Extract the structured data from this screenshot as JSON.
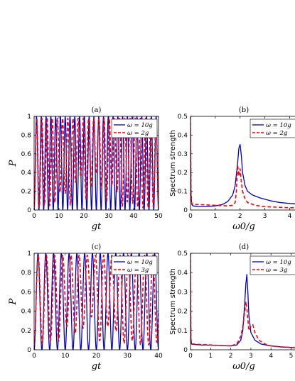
{
  "chart_data": [
    {
      "panel": "(a)",
      "type": "line",
      "title": "(a)",
      "xlabel": "gt",
      "ylabel": "P",
      "xlim": [
        0,
        50
      ],
      "ylim": [
        0,
        1
      ],
      "xticks": [
        "0",
        "10",
        "20",
        "30",
        "40",
        "50"
      ],
      "yticks": [
        "0",
        "0.2",
        "0.4",
        "0.6",
        "0.8",
        "1"
      ],
      "legend_position": "top-right",
      "series": [
        {
          "name": "ω = 10g",
          "style": "solid",
          "color": "#0000cc",
          "model": {
            "kind": "rabi",
            "amplitude": 1.0,
            "freq": 0.52
          }
        },
        {
          "name": "ω = 2g",
          "style": "dashed",
          "color": "#ff0000",
          "model": {
            "kind": "rabi",
            "amplitude": 0.98,
            "freq": 0.48,
            "min_env": [
              0.02,
              0.4
            ]
          }
        }
      ]
    },
    {
      "panel": "(b)",
      "type": "line",
      "title": "(b)",
      "xlabel": "ω0/g",
      "ylabel": "Spectrum strength",
      "xlim": [
        0,
        4.3
      ],
      "ylim": [
        0,
        0.5
      ],
      "xticks": [
        "0",
        "1",
        "2",
        "3",
        "4"
      ],
      "yticks": [
        "0",
        "0.1",
        "0.2",
        "0.3",
        "0.4",
        "0.5"
      ],
      "legend_position": "top-right",
      "series": [
        {
          "name": "ω = 10g",
          "style": "solid",
          "color": "#0000cc",
          "x": [
            0,
            0.02,
            0.05,
            0.1,
            0.3,
            0.6,
            1.0,
            1.3,
            1.5,
            1.7,
            1.8,
            1.9,
            1.95,
            2.0,
            2.05,
            2.1,
            2.2,
            2.3,
            2.5,
            2.8,
            3.2,
            3.6,
            4.0,
            4.3
          ],
          "y": [
            0.5,
            0.08,
            0.03,
            0.022,
            0.018,
            0.018,
            0.022,
            0.03,
            0.045,
            0.08,
            0.13,
            0.25,
            0.33,
            0.35,
            0.29,
            0.2,
            0.13,
            0.1,
            0.08,
            0.065,
            0.05,
            0.04,
            0.035,
            0.032
          ]
        },
        {
          "name": "ω = 2g",
          "style": "dashed",
          "color": "#ff0000",
          "x": [
            0,
            0.02,
            0.05,
            0.1,
            0.5,
            1.0,
            1.5,
            1.7,
            1.8,
            1.85,
            1.9,
            1.95,
            2.0,
            2.05,
            2.1,
            2.15,
            2.2,
            2.3,
            2.6,
            3.0,
            3.5,
            4.0,
            4.3
          ],
          "y": [
            0.5,
            0.1,
            0.035,
            0.03,
            0.028,
            0.025,
            0.022,
            0.025,
            0.04,
            0.1,
            0.24,
            0.18,
            0.22,
            0.15,
            0.1,
            0.08,
            0.06,
            0.04,
            0.025,
            0.018,
            0.015,
            0.012,
            0.012
          ]
        }
      ]
    },
    {
      "panel": "(c)",
      "type": "line",
      "title": "(c)",
      "xlabel": "gt",
      "ylabel": "P",
      "xlim": [
        0,
        40
      ],
      "ylim": [
        0,
        1
      ],
      "xticks": [
        "0",
        "10",
        "20",
        "30",
        "40"
      ],
      "yticks": [
        "0",
        "0.2",
        "0.4",
        "0.6",
        "0.8",
        "1"
      ],
      "legend_position": "top-right",
      "series": [
        {
          "name": "ω = 10g",
          "style": "solid",
          "color": "#0000cc",
          "model": {
            "kind": "rabi",
            "amplitude": 1.0,
            "freq": 0.4
          }
        },
        {
          "name": "ω = 3g",
          "style": "dashed",
          "color": "#ff0000",
          "model": {
            "kind": "rabi",
            "amplitude": 0.98,
            "freq": 0.38,
            "min_env": [
              0.05,
              0.35
            ]
          }
        }
      ]
    },
    {
      "panel": "(d)",
      "type": "line",
      "title": "(d)",
      "xlabel": "ω0/g",
      "ylabel": "Spectrum strength",
      "xlim": [
        0,
        5.3
      ],
      "ylim": [
        0,
        0.5
      ],
      "xticks": [
        "0",
        "1",
        "2",
        "3",
        "4",
        "5"
      ],
      "yticks": [
        "0",
        "0.1",
        "0.2",
        "0.3",
        "0.4",
        "0.5"
      ],
      "legend_position": "top-right",
      "series": [
        {
          "name": "ω = 10g",
          "style": "solid",
          "color": "#0000cc",
          "x": [
            0,
            0.02,
            0.05,
            0.1,
            0.5,
            1.0,
            1.5,
            2.0,
            2.3,
            2.5,
            2.6,
            2.7,
            2.75,
            2.8,
            2.85,
            2.9,
            3.0,
            3.2,
            3.5,
            4.0,
            4.5,
            5.0,
            5.3
          ],
          "y": [
            0.5,
            0.06,
            0.03,
            0.028,
            0.025,
            0.024,
            0.022,
            0.02,
            0.025,
            0.05,
            0.1,
            0.25,
            0.34,
            0.39,
            0.3,
            0.18,
            0.09,
            0.05,
            0.03,
            0.02,
            0.015,
            0.012,
            0.01
          ]
        },
        {
          "name": "ω = 3g",
          "style": "dashed",
          "color": "#ff0000",
          "x": [
            0,
            0.02,
            0.05,
            0.1,
            0.5,
            1.0,
            1.5,
            2.0,
            2.3,
            2.5,
            2.6,
            2.7,
            2.75,
            2.8,
            2.9,
            3.0,
            3.1,
            3.2,
            3.4,
            3.7,
            4.0,
            4.5,
            5.0,
            5.3
          ],
          "y": [
            0.5,
            0.06,
            0.032,
            0.03,
            0.027,
            0.025,
            0.022,
            0.02,
            0.03,
            0.07,
            0.12,
            0.2,
            0.25,
            0.22,
            0.1,
            0.12,
            0.13,
            0.09,
            0.05,
            0.03,
            0.02,
            0.015,
            0.012,
            0.01
          ]
        }
      ]
    }
  ]
}
